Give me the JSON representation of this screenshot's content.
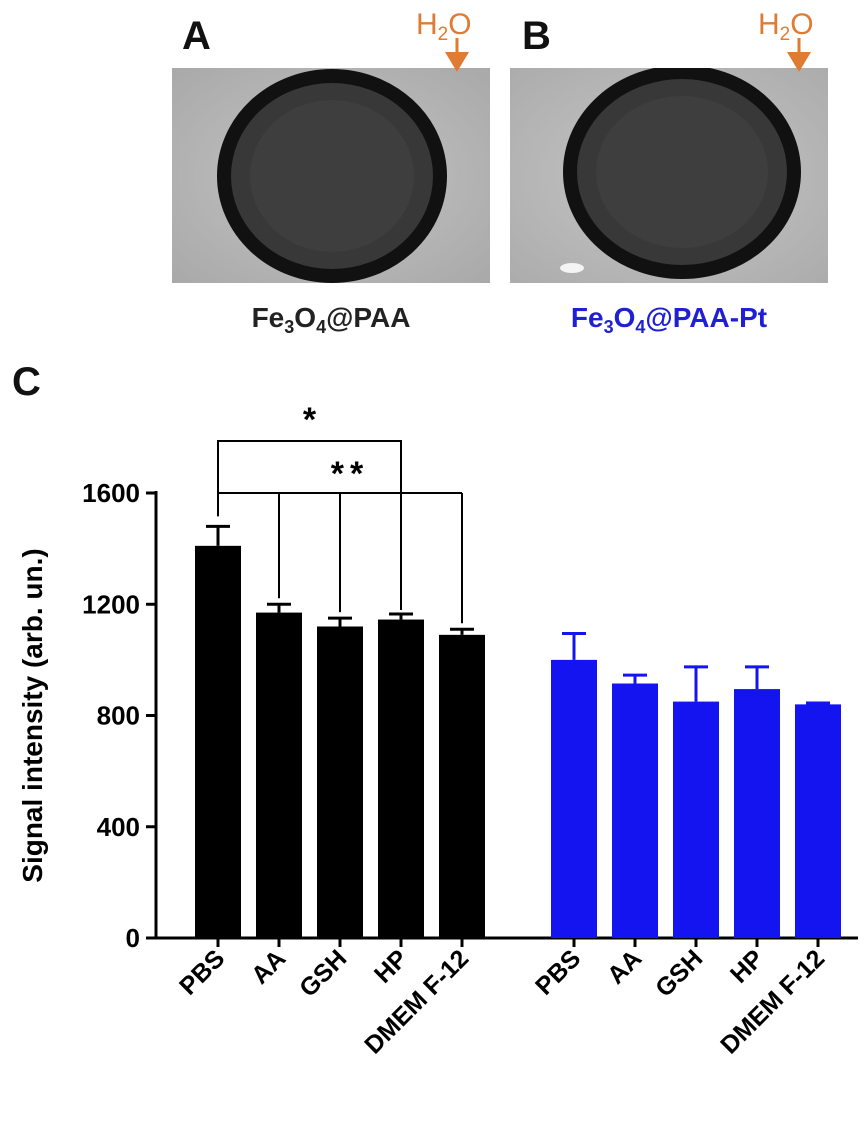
{
  "panels": {
    "a": {
      "letter": "A",
      "h2o": "H2O",
      "h2o_main": "H",
      "h2o_sub": "2",
      "h2o_end": "O",
      "caption": "Fe3O4@PAA",
      "caption_parts": [
        "Fe",
        "3",
        "O",
        "4",
        "@PAA"
      ],
      "caption_color": "#222222"
    },
    "b": {
      "letter": "B",
      "h2o": "H2O",
      "h2o_main": "H",
      "h2o_sub": "2",
      "h2o_end": "O",
      "caption": "Fe3O4@PAA-Pt",
      "caption_parts": [
        "Fe",
        "3",
        "O",
        "4",
        "@PAA-Pt"
      ],
      "caption_color": "#1f1fd6"
    },
    "c": {
      "letter": "C"
    }
  },
  "colors": {
    "h2o_label": "#e07b34",
    "series_fe3o4_paa": "#000000",
    "series_fe3o4_paa_pt": "#1414f0"
  },
  "chart_data": {
    "type": "bar",
    "ylabel": "Signal intensity (arb. un.)",
    "ylim": [
      0,
      1600
    ],
    "yticks": [
      0,
      400,
      800,
      1200,
      1600
    ],
    "groups": [
      {
        "categories": [
          "PBS",
          "AA",
          "GSH",
          "HP",
          "DMEM F-12"
        ],
        "values": [
          1410,
          1170,
          1120,
          1145,
          1090
        ],
        "errors": [
          70,
          30,
          30,
          20,
          20
        ],
        "color": "#000000"
      },
      {
        "categories": [
          "PBS",
          "AA",
          "GSH",
          "HP",
          "DMEM F-12"
        ],
        "values": [
          1000,
          915,
          850,
          895,
          840
        ],
        "errors": [
          95,
          30,
          125,
          80,
          5
        ],
        "color": "#1414f0"
      }
    ],
    "significance": [
      {
        "label": "*",
        "from": "PBS",
        "to": [
          "HP"
        ]
      },
      {
        "label": "**",
        "from": "PBS",
        "to": [
          "AA",
          "GSH",
          "DMEM F-12"
        ]
      }
    ]
  }
}
